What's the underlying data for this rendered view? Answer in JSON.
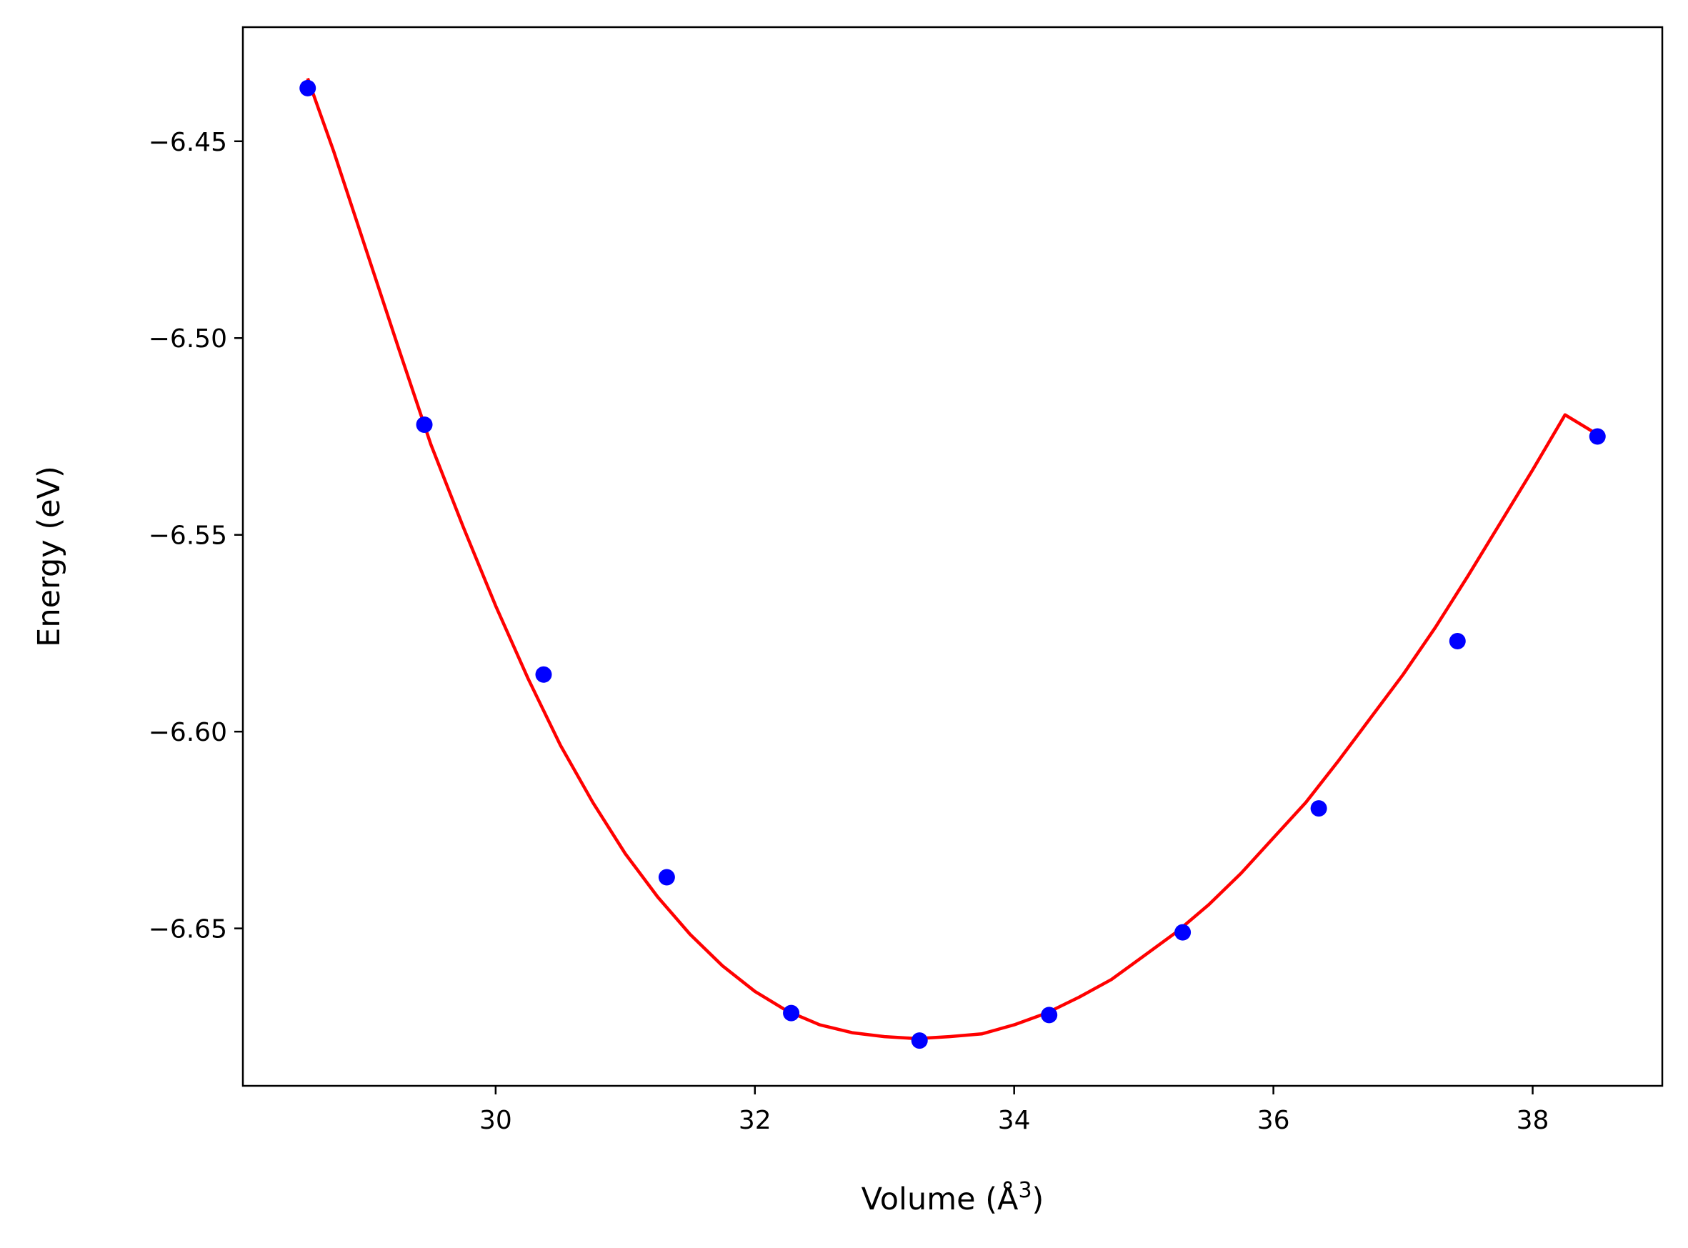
{
  "chart_data": {
    "type": "scatter",
    "title": "",
    "xlabel": "Volume (Å",
    "xlabel_sup": "3",
    "xlabel_end": ")",
    "ylabel": "Energy (eV)",
    "xlim": [
      28.05,
      39.0
    ],
    "ylim": [
      -6.69,
      -6.421
    ],
    "x_ticks": [
      30,
      32,
      34,
      36,
      38
    ],
    "x_tick_labels": [
      "30",
      "32",
      "34",
      "36",
      "38"
    ],
    "y_ticks": [
      -6.45,
      -6.5,
      -6.55,
      -6.6,
      -6.65
    ],
    "y_tick_labels": [
      "−6.45",
      "−6.50",
      "−6.55",
      "−6.60",
      "−6.65"
    ],
    "grid": false,
    "series": [
      {
        "kind": "points",
        "color": "#0000ff",
        "x": [
          28.55,
          29.45,
          30.37,
          31.32,
          32.28,
          33.27,
          34.27,
          35.3,
          36.35,
          37.42,
          38.5
        ],
        "y": [
          -6.4365,
          -6.522,
          -6.5855,
          -6.637,
          -6.6715,
          -6.6785,
          -6.672,
          -6.651,
          -6.6195,
          -6.577,
          -6.525
        ]
      },
      {
        "kind": "fit-curve",
        "color": "#ff0000",
        "x": [
          28.55,
          28.75,
          29.0,
          29.25,
          29.5,
          29.75,
          30.0,
          30.25,
          30.5,
          30.75,
          31.0,
          31.25,
          31.5,
          31.75,
          32.0,
          32.25,
          32.5,
          32.75,
          33.0,
          33.25,
          33.5,
          33.75,
          34.0,
          34.25,
          34.5,
          34.75,
          35.0,
          35.25,
          35.5,
          35.75,
          36.0,
          36.25,
          36.5,
          36.75,
          37.0,
          37.25,
          37.5,
          37.75,
          38.0,
          38.25,
          38.5
        ],
        "y": [
          -6.434,
          -6.4525,
          -6.4775,
          -6.5025,
          -6.527,
          -6.548,
          -6.568,
          -6.5865,
          -6.6035,
          -6.618,
          -6.631,
          -6.642,
          -6.6515,
          -6.6595,
          -6.666,
          -6.671,
          -6.6745,
          -6.6765,
          -6.6775,
          -6.678,
          -6.6775,
          -6.6768,
          -6.6745,
          -6.6715,
          -6.6675,
          -6.663,
          -6.657,
          -6.651,
          -6.644,
          -6.636,
          -6.627,
          -6.618,
          -6.6075,
          -6.5965,
          -6.5855,
          -6.5735,
          -6.5605,
          -6.547,
          -6.5335,
          -6.5195,
          -6.5245
        ]
      }
    ]
  }
}
